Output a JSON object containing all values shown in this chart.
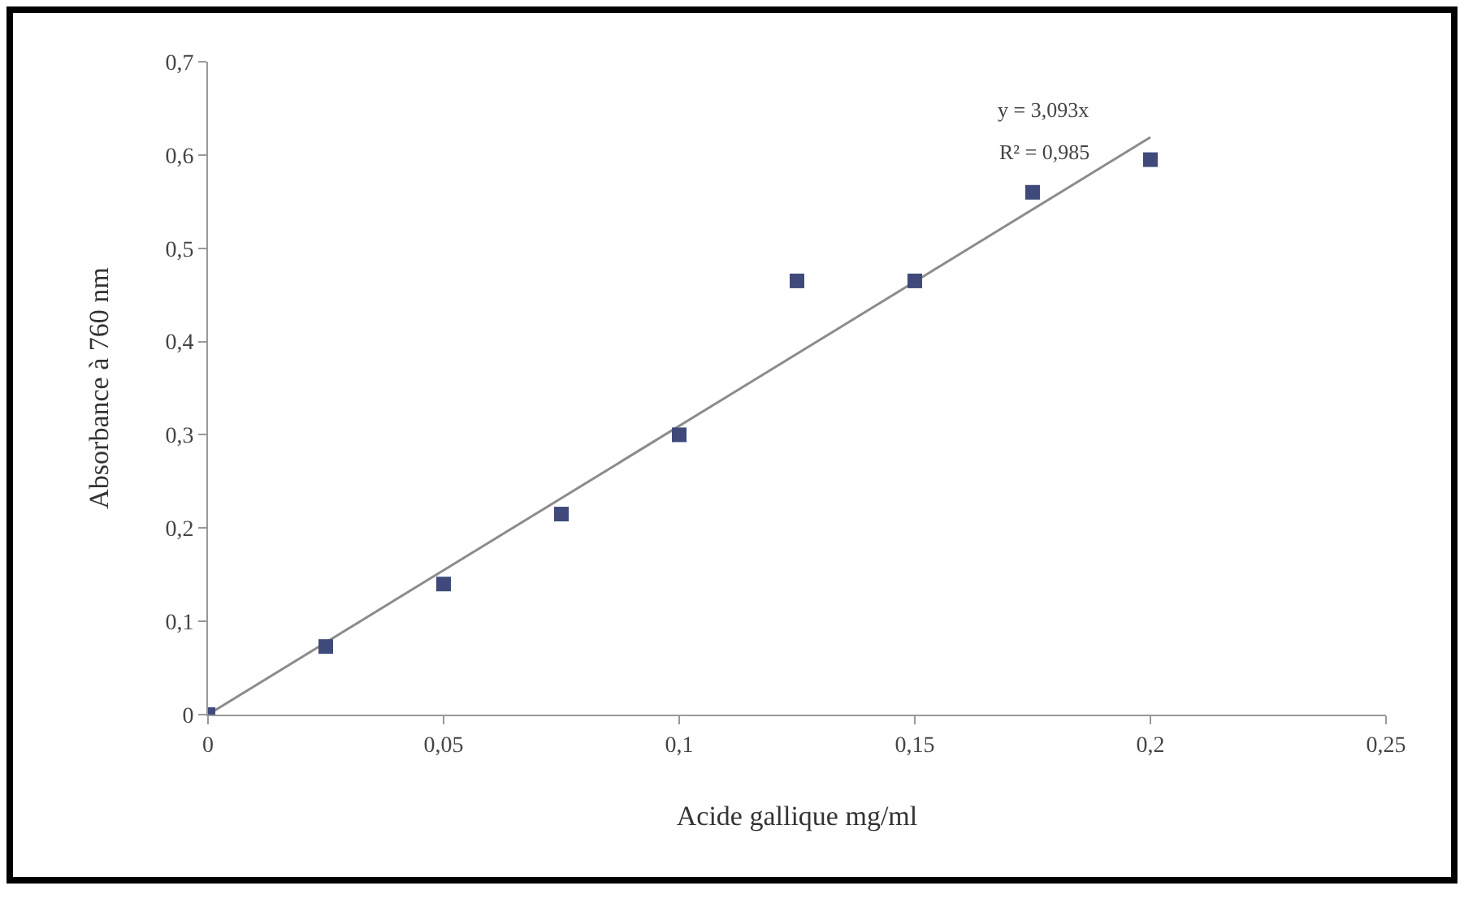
{
  "chart_data": {
    "type": "scatter",
    "xlabel": "Acide gallique mg/ml",
    "ylabel": "Absorbance à 760 nm",
    "x": [
      0,
      0.025,
      0.05,
      0.075,
      0.1,
      0.125,
      0.15,
      0.175,
      0.2
    ],
    "series": [
      {
        "color": "#3f4a7a",
        "marker": "square",
        "values": [
          0,
          0.073,
          0.14,
          0.215,
          0.3,
          0.465,
          0.465,
          0.56,
          0.595
        ]
      },
      {
        "type": "line",
        "color": "#8c8c8c",
        "x": [
          0,
          0.2
        ],
        "values": [
          0,
          0.619
        ],
        "line_style": "solid"
      }
    ],
    "xlim": [
      0,
      0.25
    ],
    "ylim": [
      0,
      0.7
    ],
    "xticks": [
      0,
      {
        "value": 0.05,
        "label": "0,05"
      },
      {
        "value": 0.1,
        "label": "0,1"
      },
      {
        "value": 0.15,
        "label": "0,15"
      },
      {
        "value": 0.2,
        "label": "0,2"
      },
      {
        "value": 0.25,
        "label": "0,25"
      }
    ],
    "yticks": [
      0,
      {
        "value": 0.1,
        "label": "0,1"
      },
      {
        "value": 0.2,
        "label": "0,2"
      },
      {
        "value": 0.3,
        "label": "0,3"
      },
      {
        "value": 0.4,
        "label": "0,4"
      },
      {
        "value": 0.5,
        "label": "0,5"
      },
      {
        "value": 0.6,
        "label": "0,6"
      },
      {
        "value": 0.7,
        "label": "0,7"
      }
    ],
    "annotations": [
      "y = 3,093x",
      "R² = 0,985"
    ],
    "grid": false
  }
}
